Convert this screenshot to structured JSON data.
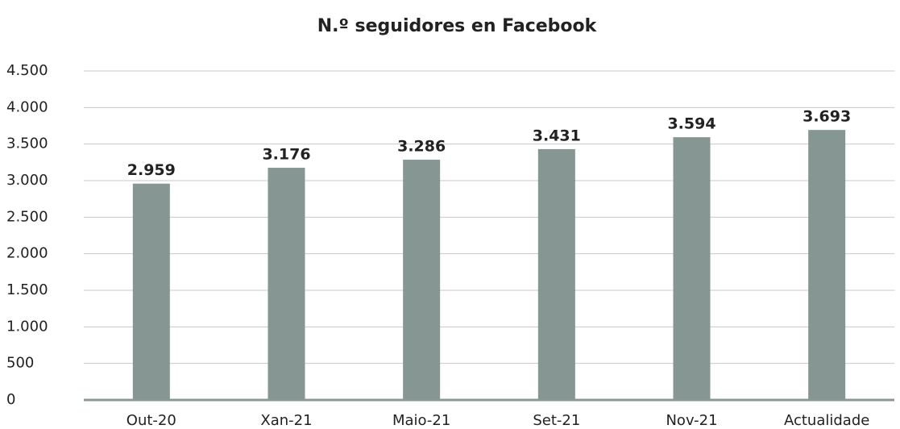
{
  "chart_data": {
    "type": "bar",
    "title": "N.º seguidores en Facebook",
    "categories": [
      "Out-20",
      "Xan-21",
      "Maio-21",
      "Set-21",
      "Nov-21",
      "Actualidade"
    ],
    "values": [
      2959,
      3176,
      3286,
      3431,
      3594,
      3693
    ],
    "value_labels": [
      "2.959",
      "3.176",
      "3.286",
      "3.431",
      "3.594",
      "3.693"
    ],
    "color": "#859693",
    "ylim": [
      0,
      4500
    ],
    "yticks": [
      0,
      500,
      {
        "value": 1000,
        "label": "1.000"
      },
      {
        "value": 1500,
        "label": "1.500"
      },
      {
        "value": 2000,
        "label": "2.000"
      },
      {
        "value": 2500,
        "label": "2.500"
      },
      {
        "value": 3000,
        "label": "3.000"
      },
      {
        "value": 3500,
        "label": "3.500"
      },
      {
        "value": 4000,
        "label": "4.000"
      },
      {
        "value": 4500,
        "label": "4.500"
      }
    ],
    "grid": true
  }
}
